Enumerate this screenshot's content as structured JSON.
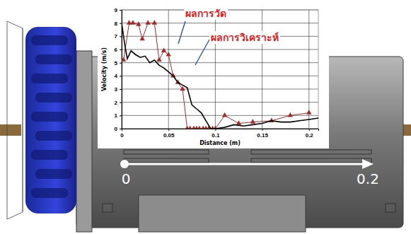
{
  "chart_data": {
    "type": "line",
    "xlabel": "Distance (m)",
    "ylabel": "Velocity (m/s)",
    "xlim": [
      0,
      0.21
    ],
    "xticks": [
      0,
      0.05,
      0.1,
      0.15,
      0.2
    ],
    "ylim": [
      0,
      9
    ],
    "yticks": [
      0,
      1,
      2,
      3,
      4,
      5,
      6,
      7,
      8,
      9
    ],
    "grid": true,
    "series": [
      {
        "name": "ผลการวัด",
        "color": "#a52a2a",
        "marker": "triangle",
        "line_style": "solid",
        "x": [
          0.002,
          0.008,
          0.012,
          0.018,
          0.022,
          0.028,
          0.035,
          0.04,
          0.045,
          0.05,
          0.055,
          0.06,
          0.065,
          0.07,
          0.073,
          0.077,
          0.08,
          0.083,
          0.087,
          0.09,
          0.093,
          0.097,
          0.1,
          0.11,
          0.125,
          0.14,
          0.16,
          0.18,
          0.2
        ],
        "values": [
          5.2,
          8,
          8,
          7.9,
          6.8,
          8,
          8,
          5.2,
          5.9,
          5.6,
          4,
          3.5,
          3,
          0,
          0,
          0,
          0,
          0,
          0,
          0,
          0,
          0,
          0,
          1,
          0.4,
          0.5,
          0.6,
          1,
          1.2
        ]
      },
      {
        "name": "ผลการวิเคราะห์",
        "color": "#000000",
        "marker": "none",
        "line_style": "solid",
        "x": [
          0,
          0.003,
          0.006,
          0.01,
          0.015,
          0.02,
          0.025,
          0.03,
          0.035,
          0.04,
          0.045,
          0.05,
          0.055,
          0.06,
          0.065,
          0.07,
          0.075,
          0.08,
          0.085,
          0.09,
          0.095,
          0.1,
          0.11,
          0.12,
          0.13,
          0.14,
          0.15,
          0.16,
          0.17,
          0.18,
          0.19,
          0.2,
          0.21
        ],
        "values": [
          8,
          6.5,
          5.3,
          5.9,
          5.6,
          5.4,
          5.5,
          5,
          5.2,
          4.8,
          4.6,
          4.3,
          4,
          3.5,
          3.3,
          3.1,
          1.8,
          1.5,
          1.2,
          0.6,
          0,
          0,
          0.1,
          0.3,
          0.2,
          0.3,
          0.4,
          0.6,
          0.5,
          0.5,
          0.6,
          0.7,
          0.8
        ]
      }
    ]
  },
  "drawing": {
    "arrow_labels": [
      "0",
      "0.2"
    ]
  }
}
